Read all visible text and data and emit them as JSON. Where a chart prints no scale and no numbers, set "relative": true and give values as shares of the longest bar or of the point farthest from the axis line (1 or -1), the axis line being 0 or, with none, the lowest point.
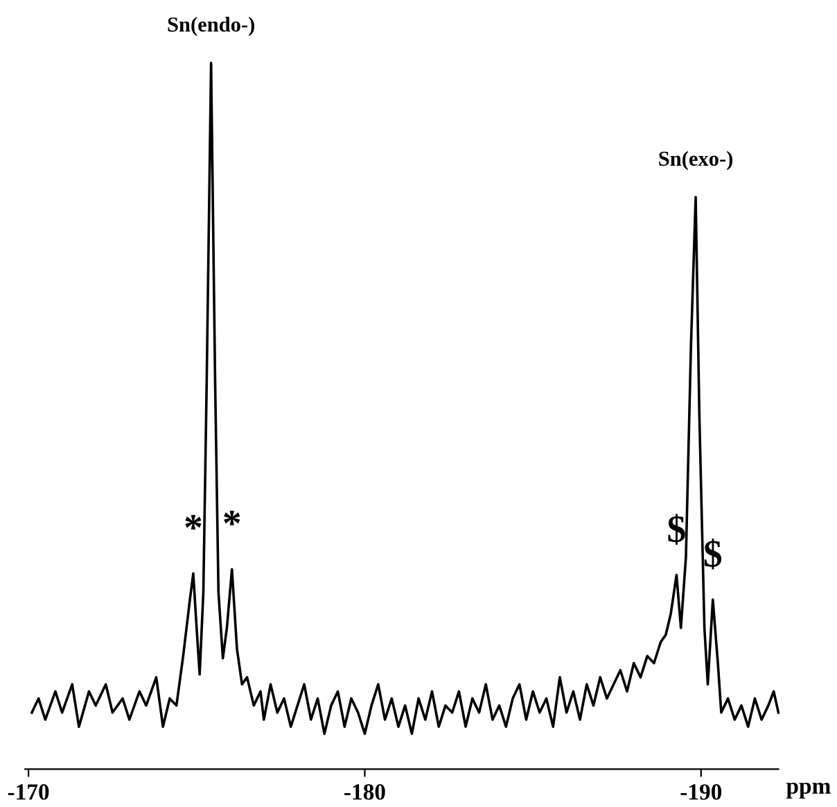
{
  "chart_data": {
    "type": "line",
    "relative": true,
    "xlabel": "ppm",
    "xlim": [
      -169.9,
      -192.3
    ],
    "xticks": [
      -170,
      -180,
      -190
    ],
    "grid": false,
    "legend": false,
    "marker": "none",
    "line_style": "solid",
    "annotations": [
      {
        "text": "Sn(endo-)",
        "x": -175.43,
        "y": 1.0
      },
      {
        "text": "Sn(exo-)",
        "x": -189.84,
        "y": 0.81
      },
      {
        "text": "*",
        "x": -174.9,
        "y": 0.277
      },
      {
        "text": "*",
        "x": -176.05,
        "y": 0.283
      },
      {
        "text": "$",
        "x": -189.27,
        "y": 0.275
      },
      {
        "text": "$",
        "x": -190.35,
        "y": 0.24
      }
    ],
    "series": [
      {
        "color": "#000000",
        "x": [
          -170.1,
          -170.3,
          -170.5,
          -170.8,
          -171.0,
          -171.3,
          -171.5,
          -171.8,
          -172.0,
          -172.3,
          -172.5,
          -172.8,
          -173.0,
          -173.3,
          -173.5,
          -173.8,
          -174.0,
          -174.2,
          -174.4,
          -174.6,
          -174.8,
          -174.9,
          -175.0,
          -175.09,
          -175.2,
          -175.3,
          -175.43,
          -175.55,
          -175.65,
          -175.78,
          -175.9,
          -176.05,
          -176.2,
          -176.35,
          -176.5,
          -176.7,
          -176.9,
          -177.0,
          -177.2,
          -177.4,
          -177.6,
          -177.8,
          -178.0,
          -178.2,
          -178.4,
          -178.6,
          -178.8,
          -179.0,
          -179.2,
          -179.4,
          -179.6,
          -179.8,
          -180.0,
          -180.2,
          -180.4,
          -180.6,
          -180.8,
          -181.0,
          -181.2,
          -181.4,
          -181.6,
          -181.8,
          -182.0,
          -182.2,
          -182.4,
          -182.6,
          -182.8,
          -183.0,
          -183.2,
          -183.4,
          -183.6,
          -183.8,
          -184.0,
          -184.2,
          -184.4,
          -184.6,
          -184.8,
          -185.0,
          -185.2,
          -185.4,
          -185.6,
          -185.8,
          -186.0,
          -186.2,
          -186.4,
          -186.6,
          -186.8,
          -187.0,
          -187.2,
          -187.4,
          -187.6,
          -187.8,
          -188.0,
          -188.2,
          -188.4,
          -188.6,
          -188.8,
          -188.95,
          -189.1,
          -189.27,
          -189.4,
          -189.55,
          -189.7,
          -189.84,
          -189.95,
          -190.1,
          -190.2,
          -190.35,
          -190.5,
          -190.6,
          -190.8,
          -191.0,
          -191.2,
          -191.4,
          -191.6,
          -191.8,
          -192.0,
          -192.16,
          -192.3
        ],
        "values": [
          0.08,
          0.1,
          0.07,
          0.11,
          0.08,
          0.12,
          0.06,
          0.11,
          0.09,
          0.12,
          0.08,
          0.1,
          0.07,
          0.11,
          0.09,
          0.13,
          0.06,
          0.1,
          0.09,
          0.16,
          0.24,
          0.277,
          0.2,
          0.134,
          0.25,
          0.55,
          1.0,
          0.55,
          0.25,
          0.157,
          0.2,
          0.283,
          0.17,
          0.12,
          0.13,
          0.09,
          0.11,
          0.07,
          0.12,
          0.08,
          0.1,
          0.06,
          0.09,
          0.12,
          0.07,
          0.1,
          0.05,
          0.09,
          0.11,
          0.06,
          0.1,
          0.08,
          0.05,
          0.09,
          0.12,
          0.07,
          0.1,
          0.06,
          0.09,
          0.05,
          0.1,
          0.07,
          0.11,
          0.06,
          0.09,
          0.08,
          0.11,
          0.06,
          0.1,
          0.08,
          0.12,
          0.07,
          0.09,
          0.06,
          0.1,
          0.12,
          0.07,
          0.11,
          0.08,
          0.1,
          0.06,
          0.13,
          0.08,
          0.11,
          0.07,
          0.12,
          0.09,
          0.13,
          0.1,
          0.12,
          0.14,
          0.11,
          0.15,
          0.13,
          0.16,
          0.15,
          0.18,
          0.19,
          0.22,
          0.275,
          0.2,
          0.3,
          0.6,
          0.81,
          0.5,
          0.2,
          0.12,
          0.24,
          0.15,
          0.08,
          0.1,
          0.07,
          0.09,
          0.06,
          0.1,
          0.07,
          0.09,
          0.11,
          0.08
        ]
      }
    ]
  }
}
